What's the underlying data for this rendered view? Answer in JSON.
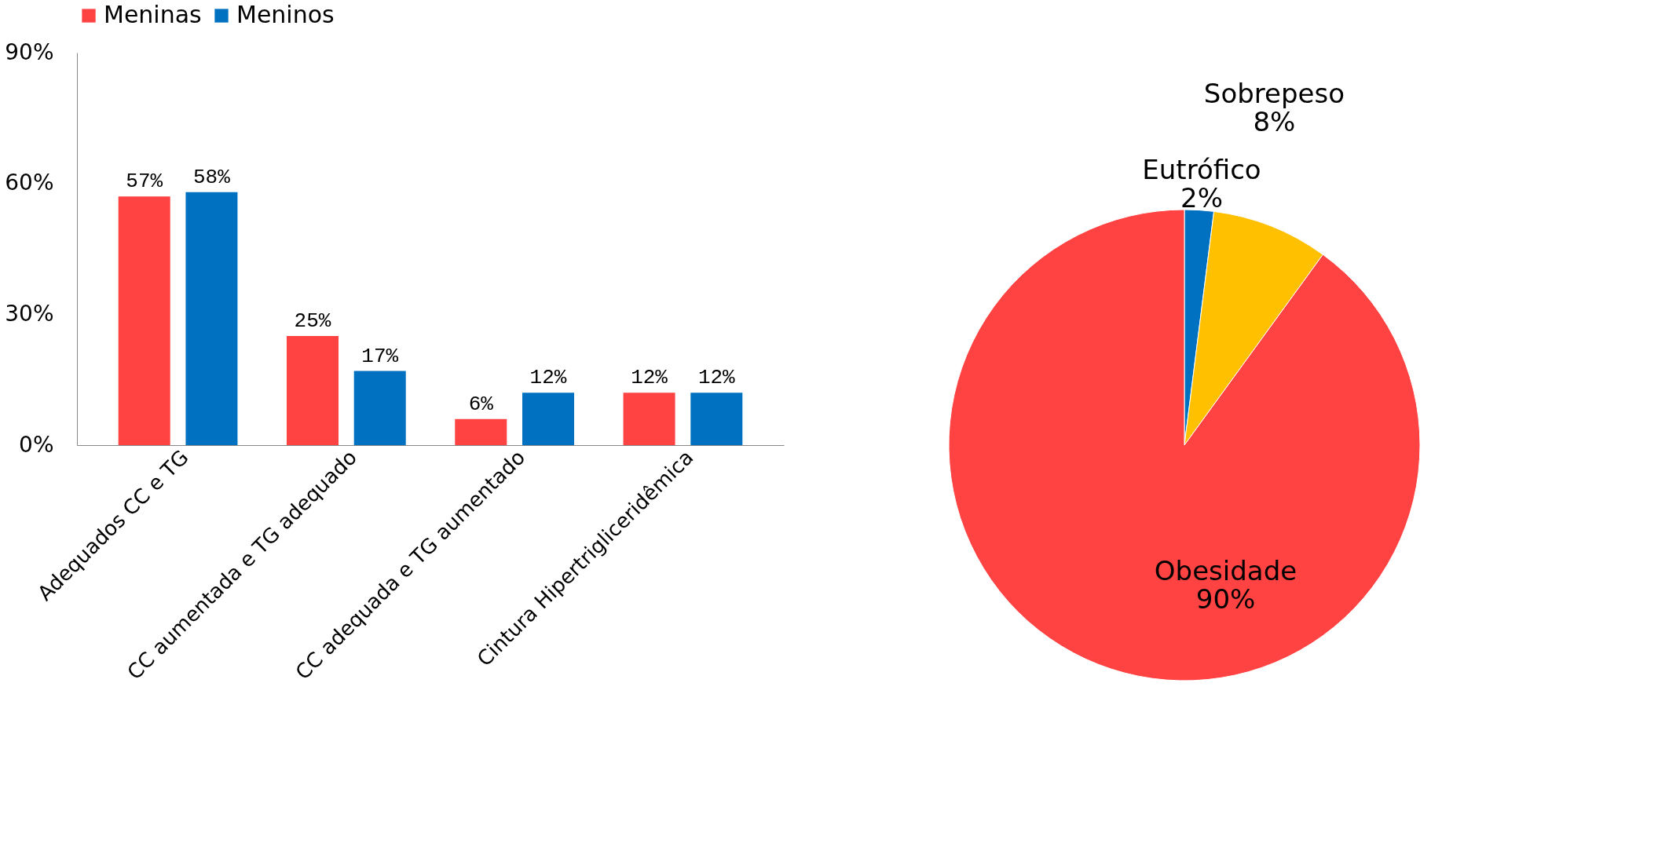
{
  "chart_data": [
    {
      "type": "bar",
      "categories": [
        "Adequados CC e TG",
        "CC aumentada e TG adequado",
        "CC adequada e TG aumentado",
        "Cintura Hipertrigliceridêmica"
      ],
      "series": [
        {
          "name": "Meninas",
          "color": "#ff4343",
          "values": [
            57,
            25,
            6,
            12
          ],
          "value_labels": [
            "57%",
            "25%",
            "6%",
            "12%"
          ]
        },
        {
          "name": "Meninos",
          "color": "#0070c0",
          "values": [
            58,
            17,
            12,
            12
          ],
          "value_labels": [
            "58%",
            "17%",
            "12%",
            "12%"
          ]
        }
      ],
      "ylim": [
        0,
        90
      ],
      "yticks": [
        {
          "value": 0,
          "label": "0%"
        },
        {
          "value": 30,
          "label": "30%"
        },
        {
          "value": 60,
          "label": "60%"
        },
        {
          "value": 90,
          "label": "90%"
        }
      ],
      "grid": false,
      "legend": "top"
    },
    {
      "type": "pie",
      "categories": [
        "Eutrófico",
        "Sobrepeso",
        "Obesidade"
      ],
      "values": [
        2,
        8,
        90
      ],
      "value_labels": [
        "2%",
        "8%",
        "90%"
      ],
      "colors": [
        "#0070c0",
        "#ffc000",
        "#ff4343"
      ]
    }
  ]
}
